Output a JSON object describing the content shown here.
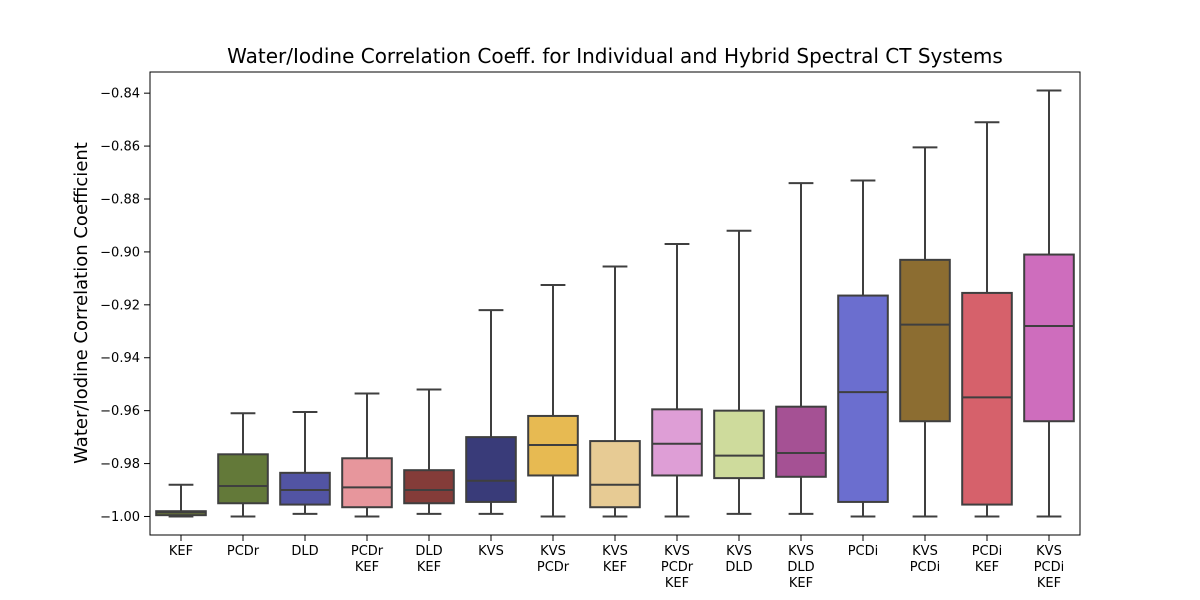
{
  "chart_data": {
    "type": "box",
    "title": "Water/Iodine Correlation Coeff. for Individual and Hybrid Spectral CT Systems",
    "xlabel": "",
    "ylabel": "Water/Iodine Correlation Coefficient",
    "ylim": [
      -1.007,
      -0.832
    ],
    "yticks": [
      -1.0,
      -0.98,
      -0.96,
      -0.94,
      -0.92,
      -0.9,
      -0.88,
      -0.86,
      -0.84
    ],
    "ytick_labels": [
      "−1.00",
      "−0.98",
      "−0.96",
      "−0.94",
      "−0.92",
      "−0.90",
      "−0.88",
      "−0.86",
      "−0.84"
    ],
    "grid": false,
    "categories": [
      {
        "label": [
          "KEF"
        ],
        "color": "#7b8e37",
        "min": -1.0,
        "q1": -0.9995,
        "median": -0.9985,
        "q3": -0.998,
        "max": -0.988
      },
      {
        "label": [
          "PCDr"
        ],
        "color": "#637939",
        "min": -1.0,
        "q1": -0.995,
        "median": -0.9885,
        "q3": -0.9765,
        "max": -0.961
      },
      {
        "label": [
          "DLD"
        ],
        "color": "#5254a3",
        "min": -0.999,
        "q1": -0.9955,
        "median": -0.99,
        "q3": -0.9835,
        "max": -0.9605
      },
      {
        "label": [
          "PCDr",
          "KEF"
        ],
        "color": "#e7969c",
        "min": -1.0,
        "q1": -0.9965,
        "median": -0.989,
        "q3": -0.978,
        "max": -0.9535
      },
      {
        "label": [
          "DLD",
          "KEF"
        ],
        "color": "#843c39",
        "min": -0.999,
        "q1": -0.995,
        "median": -0.99,
        "q3": -0.9825,
        "max": -0.952
      },
      {
        "label": [
          "KVS"
        ],
        "color": "#393b79",
        "min": -0.999,
        "q1": -0.9945,
        "median": -0.9865,
        "q3": -0.97,
        "max": -0.922
      },
      {
        "label": [
          "KVS",
          "PCDr"
        ],
        "color": "#e7ba52",
        "min": -1.0,
        "q1": -0.9845,
        "median": -0.973,
        "q3": -0.962,
        "max": -0.9125
      },
      {
        "label": [
          "KVS",
          "KEF"
        ],
        "color": "#e7cb94",
        "min": -1.0,
        "q1": -0.9965,
        "median": -0.988,
        "q3": -0.9715,
        "max": -0.9055
      },
      {
        "label": [
          "KVS",
          "PCDr",
          "KEF"
        ],
        "color": "#de9ed6",
        "min": -1.0,
        "q1": -0.9845,
        "median": -0.9725,
        "q3": -0.9595,
        "max": -0.897
      },
      {
        "label": [
          "KVS",
          "DLD"
        ],
        "color": "#cedb9c",
        "min": -0.999,
        "q1": -0.9855,
        "median": -0.977,
        "q3": -0.96,
        "max": -0.892
      },
      {
        "label": [
          "KVS",
          "DLD",
          "KEF"
        ],
        "color": "#a55194",
        "min": -0.999,
        "q1": -0.985,
        "median": -0.976,
        "q3": -0.9585,
        "max": -0.874
      },
      {
        "label": [
          "PCDi"
        ],
        "color": "#6b6ecf",
        "min": -1.0,
        "q1": -0.9945,
        "median": -0.953,
        "q3": -0.9165,
        "max": -0.873
      },
      {
        "label": [
          "KVS",
          "PCDi"
        ],
        "color": "#8c6d31",
        "min": -1.0,
        "q1": -0.964,
        "median": -0.9275,
        "q3": -0.903,
        "max": -0.8605
      },
      {
        "label": [
          "PCDi",
          "KEF"
        ],
        "color": "#d6616b",
        "min": -1.0,
        "q1": -0.9955,
        "median": -0.955,
        "q3": -0.9155,
        "max": -0.851
      },
      {
        "label": [
          "KVS",
          "PCDi",
          "KEF"
        ],
        "color": "#ce6dbd",
        "min": -1.0,
        "q1": -0.964,
        "median": -0.928,
        "q3": -0.901,
        "max": -0.839
      }
    ]
  }
}
